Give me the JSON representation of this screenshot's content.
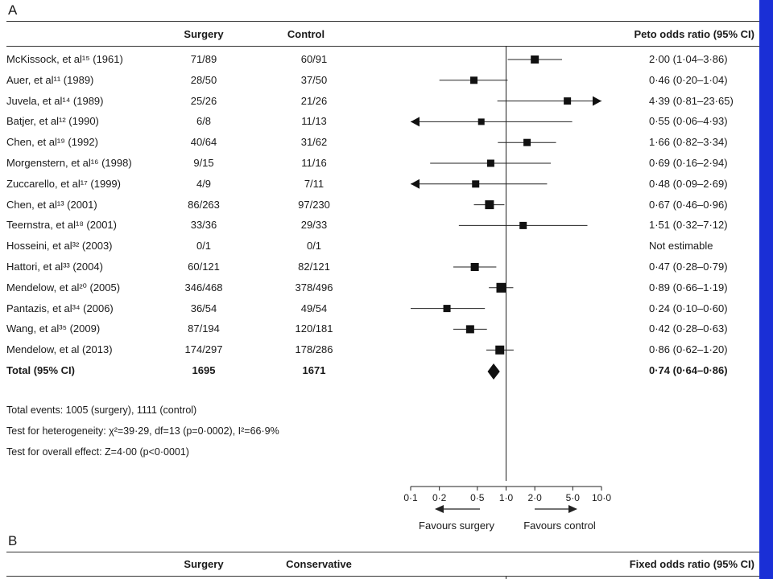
{
  "panel_a": {
    "label": "A",
    "headers": {
      "surgery": "Surgery",
      "control": "Control",
      "ratio": "Peto odds ratio (95% CI)"
    }
  },
  "panel_b": {
    "label": "B",
    "headers": {
      "surgery": "Surgery",
      "control": "Conservative",
      "ratio": "Fixed odds ratio (95% CI)"
    }
  },
  "stats": {
    "events": "Total events: 1005 (surgery), 1111 (control)",
    "heterogeneity": "Test for heterogeneity: χ²=39·29, df=13 (p=0·0002), I²=66·9%",
    "overall": "Test for overall effect: Z=4·00 (p<0·0001)"
  },
  "axis": {
    "favours_left": "Favours surgery",
    "favours_right": "Favours control"
  },
  "colors": {
    "accent_bar": "#1a2fd6",
    "marker": "#111111"
  },
  "chart_data": {
    "type": "scatter",
    "x_scale": "log",
    "xlim": [
      0.1,
      10.0
    ],
    "reference_line": 1.0,
    "ticks": [
      0.1,
      0.2,
      0.5,
      1.0,
      2.0,
      5.0,
      10.0
    ],
    "tick_labels": [
      "0·1",
      "0·2",
      "0·5",
      "1·0",
      "2·0",
      "5·0",
      "10·0"
    ],
    "studies": [
      {
        "name": "McKissock, et al¹⁵ (1961)",
        "surgery": "71/89",
        "control": "60/91",
        "or": 2.0,
        "lo": 1.04,
        "hi": 3.86,
        "ci_text": "2·00 (1·04–3·86)"
      },
      {
        "name": "Auer, et al¹¹ (1989)",
        "surgery": "28/50",
        "control": "37/50",
        "or": 0.46,
        "lo": 0.2,
        "hi": 1.04,
        "ci_text": "0·46 (0·20–1·04)"
      },
      {
        "name": "Juvela, et al¹⁴ (1989)",
        "surgery": "25/26",
        "control": "21/26",
        "or": 4.39,
        "lo": 0.81,
        "hi": 23.65,
        "ci_text": "4·39 (0·81–23·65)"
      },
      {
        "name": "Batjer, et al¹² (1990)",
        "surgery": "6/8",
        "control": "11/13",
        "or": 0.55,
        "lo": 0.06,
        "hi": 4.93,
        "ci_text": "0·55 (0·06–4·93)"
      },
      {
        "name": "Chen, et al¹⁹ (1992)",
        "surgery": "40/64",
        "control": "31/62",
        "or": 1.66,
        "lo": 0.82,
        "hi": 3.34,
        "ci_text": "1·66 (0·82–3·34)"
      },
      {
        "name": "Morgenstern, et al¹⁶ (1998)",
        "surgery": "9/15",
        "control": "11/16",
        "or": 0.69,
        "lo": 0.16,
        "hi": 2.94,
        "ci_text": "0·69 (0·16–2·94)"
      },
      {
        "name": "Zuccarello, et al¹⁷ (1999)",
        "surgery": "4/9",
        "control": "7/11",
        "or": 0.48,
        "lo": 0.09,
        "hi": 2.69,
        "ci_text": "0·48 (0·09–2·69)"
      },
      {
        "name": "Chen, et al¹³ (2001)",
        "surgery": "86/263",
        "control": "97/230",
        "or": 0.67,
        "lo": 0.46,
        "hi": 0.96,
        "ci_text": "0·67 (0·46–0·96)"
      },
      {
        "name": "Teernstra, et al¹⁸ (2001)",
        "surgery": "33/36",
        "control": "29/33",
        "or": 1.51,
        "lo": 0.32,
        "hi": 7.12,
        "ci_text": "1·51 (0·32–7·12)"
      },
      {
        "name": "Hosseini, et al³² (2003)",
        "surgery": "0/1",
        "control": "0/1",
        "or": null,
        "lo": null,
        "hi": null,
        "ci_text": "Not estimable"
      },
      {
        "name": "Hattori, et al³³ (2004)",
        "surgery": "60/121",
        "control": "82/121",
        "or": 0.47,
        "lo": 0.28,
        "hi": 0.79,
        "ci_text": "0·47 (0·28–0·79)"
      },
      {
        "name": "Mendelow, et al²⁰ (2005)",
        "surgery": "346/468",
        "control": "378/496",
        "or": 0.89,
        "lo": 0.66,
        "hi": 1.19,
        "ci_text": "0·89 (0·66–1·19)"
      },
      {
        "name": "Pantazis, et al³⁴ (2006)",
        "surgery": "36/54",
        "control": "49/54",
        "or": 0.24,
        "lo": 0.1,
        "hi": 0.6,
        "ci_text": "0·24 (0·10–0·60)"
      },
      {
        "name": "Wang, et al³⁵ (2009)",
        "surgery": "87/194",
        "control": "120/181",
        "or": 0.42,
        "lo": 0.28,
        "hi": 0.63,
        "ci_text": "0·42 (0·28–0·63)"
      },
      {
        "name": "Mendelow, et al (2013)",
        "surgery": "174/297",
        "control": "178/286",
        "or": 0.86,
        "lo": 0.62,
        "hi": 1.2,
        "ci_text": "0·86 (0·62–1·20)"
      }
    ],
    "total": {
      "name": "Total (95% CI)",
      "surgery": "1695",
      "control": "1671",
      "or": 0.74,
      "lo": 0.64,
      "hi": 0.86,
      "ci_text": "0·74 (0·64–0·86)"
    }
  }
}
